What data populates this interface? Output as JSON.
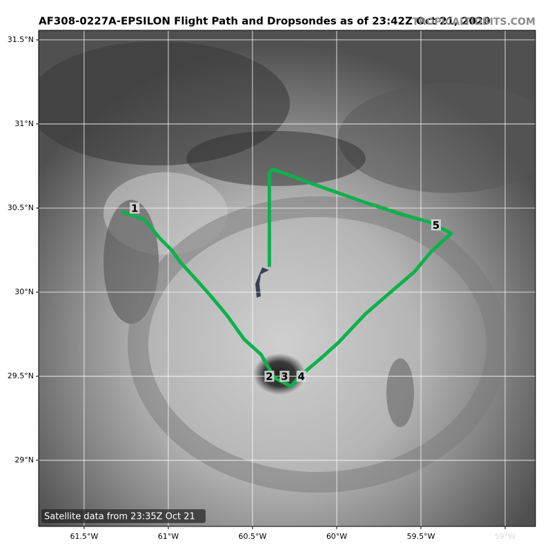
{
  "map": {
    "title": "AF308-0227A-EPSILON Flight Path and Dropsondes as of 23:42Z Oct 21, 2020",
    "watermark": "TROPICALTIDBITS.COM",
    "footer": "Satellite data from 23:35Z Oct 21",
    "xlim": [
      -61.77,
      -58.82
    ],
    "ylim": [
      28.607,
      31.557
    ],
    "xticks": [
      {
        "value": -61.5,
        "label": "61.5°W"
      },
      {
        "value": -61,
        "label": "61°W"
      },
      {
        "value": -60.5,
        "label": "60.5°W"
      },
      {
        "value": -60,
        "label": "60°W"
      },
      {
        "value": -59.5,
        "label": "59.5°W"
      },
      {
        "value": -59,
        "label": "59°W"
      }
    ],
    "yticks": [
      {
        "value": 29,
        "label": "29°N"
      },
      {
        "value": 29.5,
        "label": "29.5°N"
      },
      {
        "value": 30,
        "label": "30°N"
      },
      {
        "value": 30.5,
        "label": "30.5°N"
      },
      {
        "value": 31,
        "label": "31°N"
      },
      {
        "value": 31.5,
        "label": "31.5°N"
      }
    ],
    "path_color": "#0db14b",
    "path": {
      "lon": [
        -61.28,
        -61.14,
        -61.05,
        -60.98,
        -60.93,
        -60.83,
        -60.75,
        -60.65,
        -60.55,
        -60.45,
        -60.37,
        -60.27,
        -60.22,
        -60.09,
        -59.99,
        -59.83,
        -59.68,
        -59.54,
        -59.44,
        -59.32,
        -59.46,
        -59.64,
        -59.85,
        -59.99,
        -60.16,
        -60.32,
        -60.38,
        -60.4,
        -60.4
      ],
      "lat": [
        30.48,
        30.43,
        30.32,
        30.25,
        30.18,
        30.07,
        29.98,
        29.86,
        29.72,
        29.63,
        29.49,
        29.44,
        29.5,
        29.61,
        29.7,
        29.87,
        30.0,
        30.12,
        30.24,
        30.35,
        30.42,
        30.47,
        30.54,
        30.59,
        30.65,
        30.71,
        30.73,
        30.71,
        30.15
      ]
    },
    "dropsondes": [
      {
        "label": "1",
        "lon": -61.2,
        "lat": 30.5
      },
      {
        "label": "2",
        "lon": -60.4,
        "lat": 29.5
      },
      {
        "label": "3",
        "lon": -60.31,
        "lat": 29.5
      },
      {
        "label": "4",
        "lon": -60.21,
        "lat": 29.5
      },
      {
        "label": "5",
        "lon": -59.41,
        "lat": 30.4
      }
    ]
  }
}
